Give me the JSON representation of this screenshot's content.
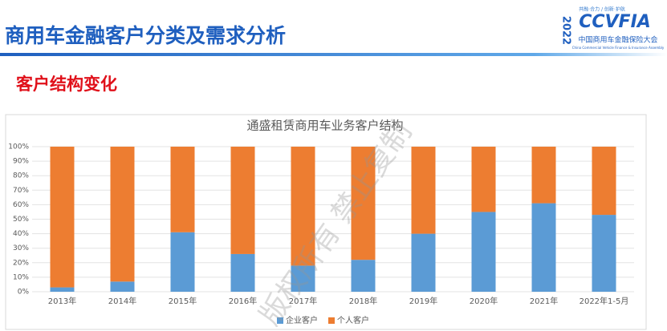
{
  "header": {
    "title": "商用车金融客户分类及需求分析",
    "subtitle": "客户结构变化"
  },
  "logo": {
    "slogan": "共融·合力 / 创新·护航",
    "year": "2022",
    "brand": "CCVFIA",
    "name": "中国商用车金融保险大会",
    "name_en": "China Commercial Vehicle Finance & Insurance Assembly"
  },
  "watermark": "版权所有 禁止复制",
  "chart_data": {
    "type": "stacked_bar",
    "title": "通盛租赁商用车业务客户结构",
    "categories": [
      "2013年",
      "2014年",
      "2015年",
      "2016年",
      "2017年",
      "2018年",
      "2019年",
      "2020年",
      "2021年",
      "2022年1-5月"
    ],
    "series": [
      {
        "name": "企业客户",
        "color": "#5b9bd5",
        "values": [
          3,
          7,
          41,
          26,
          18,
          22,
          40,
          55,
          61,
          53
        ]
      },
      {
        "name": "个人客户",
        "color": "#ed7d31",
        "values": [
          97,
          93,
          59,
          74,
          82,
          78,
          60,
          45,
          39,
          47
        ]
      }
    ],
    "ylim": [
      0,
      100
    ],
    "yticks": [
      {
        "value": 0,
        "label": "0%"
      },
      {
        "value": 10,
        "label": "10%"
      },
      {
        "value": 20,
        "label": "20%"
      },
      {
        "value": 30,
        "label": "30%"
      },
      {
        "value": 40,
        "label": "40%"
      },
      {
        "value": 50,
        "label": "50%"
      },
      {
        "value": 60,
        "label": "60%"
      },
      {
        "value": 70,
        "label": "70%"
      },
      {
        "value": 80,
        "label": "80%"
      },
      {
        "value": 90,
        "label": "90%"
      },
      {
        "value": 100,
        "label": "100%"
      }
    ],
    "grid": true,
    "legend": "bottom"
  }
}
